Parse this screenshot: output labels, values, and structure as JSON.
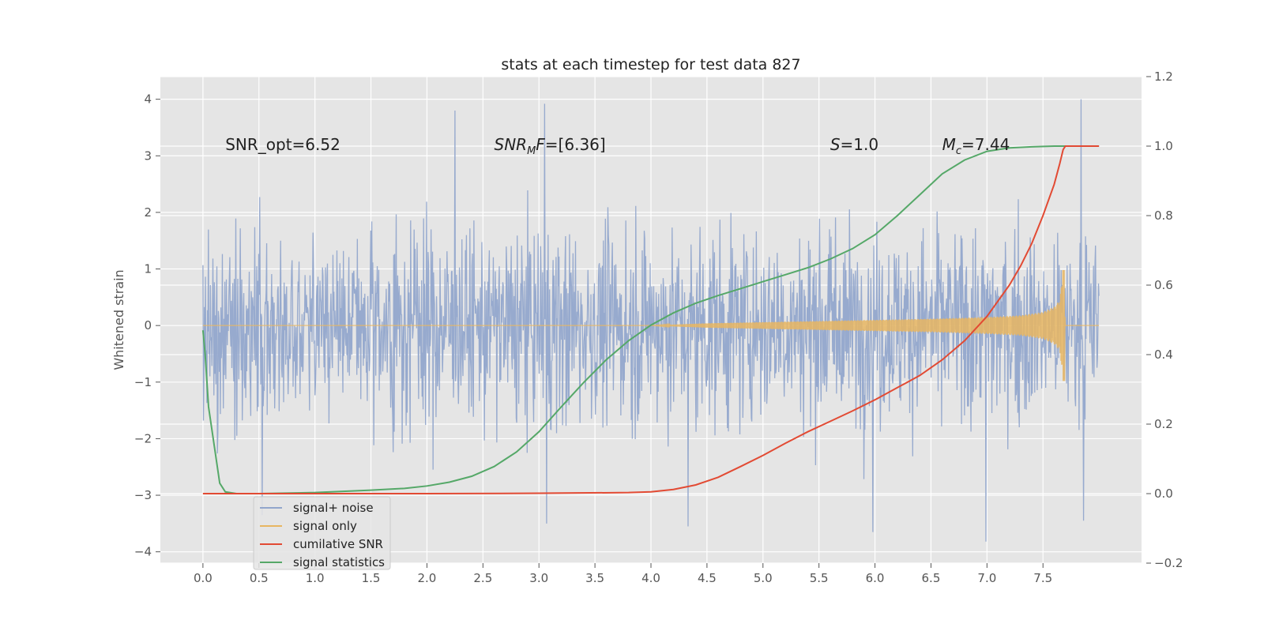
{
  "chart_data": {
    "type": "line",
    "title": "stats at each timestep for test data 827",
    "xlabel": "",
    "ylabel": "Whitened strain",
    "y2label": "",
    "xlim": [
      -0.38,
      8.38
    ],
    "ylim": [
      -4.2,
      4.4
    ],
    "y2lim": [
      -0.2,
      1.2
    ],
    "xticks": [
      0.0,
      0.5,
      1.0,
      1.5,
      2.0,
      2.5,
      3.0,
      3.5,
      4.0,
      4.5,
      5.0,
      5.5,
      6.0,
      6.5,
      7.0,
      7.5
    ],
    "xtick_labels": [
      "0.0",
      "0.5",
      "1.0",
      "1.5",
      "2.0",
      "2.5",
      "3.0",
      "3.5",
      "4.0",
      "4.5",
      "5.0",
      "5.5",
      "6.0",
      "6.5",
      "7.0",
      "7.5"
    ],
    "yticks": [
      4,
      3,
      2,
      1,
      0,
      -1,
      -2,
      -3,
      -4
    ],
    "ytick_labels": [
      "4",
      "3",
      "2",
      "1",
      "0",
      "−1",
      "−2",
      "−3",
      "−4"
    ],
    "y2ticks": [
      1.2,
      1.0,
      0.8,
      0.6,
      0.4,
      0.2,
      0.0,
      -0.2
    ],
    "y2tick_labels": [
      "1.2",
      "1.0",
      "0.8",
      "0.6",
      "0.4",
      "0.2",
      "0.0",
      "−0.2"
    ],
    "grid": true,
    "style": "ggplot",
    "legend_position": "lower-left",
    "annotations": [
      {
        "text": "SNR_opt=6.52",
        "x": 0.2,
        "y": 3.2
      },
      {
        "text": "SNR_MF=[6.36]",
        "x": 2.6,
        "y": 3.2
      },
      {
        "text": "S=1.0",
        "x": 5.6,
        "y": 3.2
      },
      {
        "text": "M_c=7.44",
        "x": 6.6,
        "y": 3.2
      }
    ],
    "series": [
      {
        "name": "signal+ noise",
        "color": "#92a6cc",
        "axis": "left",
        "kind": "noise",
        "x_range": [
          0.0,
          8.0
        ],
        "envelope_typical": [
          -2.6,
          2.6
        ],
        "notable_peaks": [
          {
            "x": 2.25,
            "y": 3.8
          },
          {
            "x": 3.05,
            "y": 3.92
          },
          {
            "x": 7.84,
            "y": 4.0
          },
          {
            "x": 3.07,
            "y": -3.5
          },
          {
            "x": 4.33,
            "y": -3.55
          },
          {
            "x": 6.99,
            "y": -3.82
          },
          {
            "x": 7.86,
            "y": -3.45
          },
          {
            "x": 5.98,
            "y": -3.65
          },
          {
            "x": 0.53,
            "y": -3.35
          }
        ]
      },
      {
        "name": "signal only",
        "color": "#e7b661",
        "axis": "left",
        "kind": "chirp",
        "x": [
          0.0,
          4.0,
          4.5,
          5.0,
          5.5,
          6.0,
          6.5,
          7.0,
          7.3,
          7.5,
          7.6,
          7.65,
          7.68,
          7.7,
          8.0
        ],
        "amplitude": [
          0.0,
          0.0,
          0.04,
          0.06,
          0.08,
          0.1,
          0.12,
          0.15,
          0.18,
          0.24,
          0.33,
          0.45,
          0.98,
          0.0,
          0.0
        ]
      },
      {
        "name": "cumilative SNR",
        "color": "#e24a33",
        "axis": "right",
        "x": [
          0.0,
          1.0,
          2.0,
          3.0,
          3.8,
          4.0,
          4.2,
          4.4,
          4.6,
          4.8,
          5.0,
          5.2,
          5.4,
          5.6,
          5.8,
          6.0,
          6.2,
          6.4,
          6.6,
          6.8,
          7.0,
          7.2,
          7.3,
          7.4,
          7.5,
          7.6,
          7.65,
          7.68,
          7.7,
          8.0
        ],
        "y": [
          0.0,
          0.0,
          0.0,
          0.001,
          0.003,
          0.005,
          0.012,
          0.025,
          0.047,
          0.078,
          0.11,
          0.145,
          0.178,
          0.208,
          0.238,
          0.27,
          0.305,
          0.34,
          0.385,
          0.44,
          0.51,
          0.6,
          0.655,
          0.72,
          0.8,
          0.89,
          0.95,
          0.99,
          1.0,
          1.0
        ]
      },
      {
        "name": "signal statistics",
        "color": "#55a868",
        "axis": "right",
        "x": [
          0.0,
          0.02,
          0.05,
          0.1,
          0.15,
          0.2,
          0.3,
          0.5,
          1.0,
          1.5,
          1.8,
          2.0,
          2.2,
          2.4,
          2.6,
          2.8,
          3.0,
          3.2,
          3.4,
          3.6,
          3.8,
          4.0,
          4.2,
          4.4,
          4.6,
          4.8,
          5.0,
          5.2,
          5.4,
          5.6,
          5.8,
          6.0,
          6.2,
          6.4,
          6.6,
          6.8,
          7.0,
          7.2,
          7.4,
          7.6,
          8.0
        ],
        "y": [
          0.47,
          0.4,
          0.25,
          0.14,
          0.03,
          0.005,
          0.0,
          0.0,
          0.003,
          0.01,
          0.015,
          0.022,
          0.033,
          0.05,
          0.078,
          0.12,
          0.178,
          0.25,
          0.32,
          0.385,
          0.44,
          0.485,
          0.52,
          0.548,
          0.57,
          0.59,
          0.61,
          0.63,
          0.65,
          0.675,
          0.705,
          0.745,
          0.8,
          0.86,
          0.92,
          0.96,
          0.985,
          0.995,
          0.998,
          1.0,
          1.0
        ]
      }
    ]
  }
}
